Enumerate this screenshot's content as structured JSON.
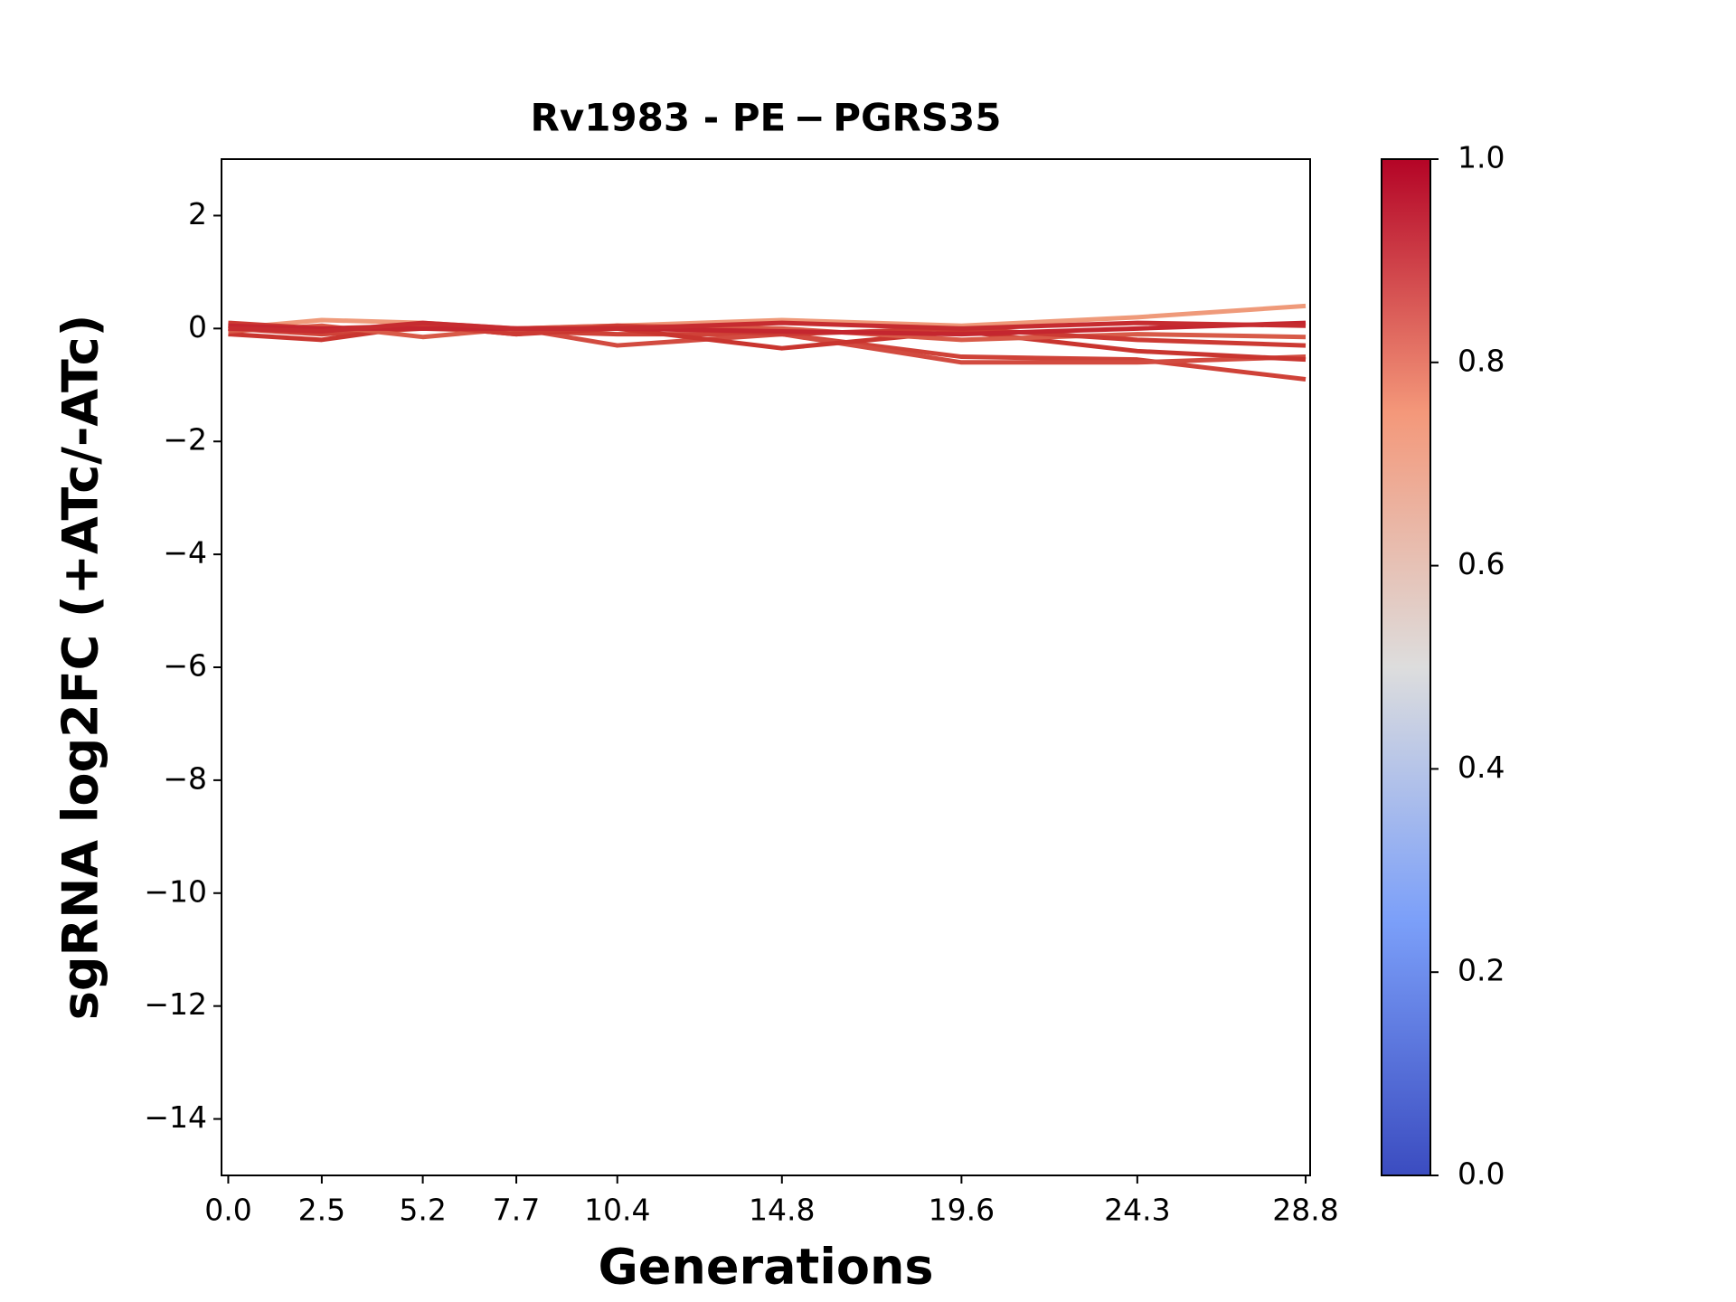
{
  "chart_data": {
    "type": "line",
    "title": "Rv1983 - PE − PGRS35",
    "x_label": "Generations",
    "y_label": "sgRNA log2FC (+ATc/-ATc)",
    "x": [
      0.0,
      2.5,
      5.2,
      7.7,
      10.4,
      14.8,
      19.6,
      24.3,
      28.8
    ],
    "xticks": [
      {
        "value": 0,
        "label": "0.0"
      },
      2.5,
      5.2,
      7.7,
      10.4,
      14.8,
      19.6,
      24.3,
      28.8
    ],
    "xlim": [
      -0.18,
      28.92
    ],
    "ylim": [
      -15,
      3
    ],
    "yticks": [
      {
        "value": -14,
        "label": "−14"
      },
      {
        "value": -12,
        "label": "−12"
      },
      {
        "value": -10,
        "label": "−10"
      },
      {
        "value": -8,
        "label": "−8"
      },
      {
        "value": -6,
        "label": "−6"
      },
      {
        "value": -4,
        "label": "−4"
      },
      {
        "value": -2,
        "label": "−2"
      },
      0,
      2
    ],
    "series": [
      {
        "color": "#ef9a7a",
        "values": [
          0.0,
          0.15,
          0.1,
          0.0,
          0.05,
          0.15,
          0.05,
          0.2,
          0.4
        ]
      },
      {
        "color": "#cf4238",
        "values": [
          0.0,
          -0.1,
          0.0,
          -0.05,
          -0.1,
          -0.1,
          -0.5,
          -0.55,
          -0.9
        ]
      },
      {
        "color": "#d24b40",
        "values": [
          0.05,
          -0.05,
          0.05,
          0.0,
          -0.3,
          -0.1,
          -0.6,
          -0.6,
          -0.5
        ]
      },
      {
        "color": "#c9352f",
        "values": [
          -0.1,
          -0.2,
          0.05,
          -0.1,
          0.0,
          -0.35,
          -0.05,
          -0.4,
          -0.55
        ]
      },
      {
        "color": "#d85a48",
        "values": [
          -0.05,
          0.05,
          -0.15,
          0.0,
          0.05,
          0.0,
          -0.2,
          -0.1,
          -0.15
        ]
      },
      {
        "color": "#cc3a33",
        "values": [
          0.1,
          0.0,
          0.05,
          -0.1,
          0.05,
          -0.1,
          0.0,
          -0.2,
          -0.3
        ]
      },
      {
        "color": "#c4262f",
        "values": [
          0.05,
          0.0,
          0.0,
          0.0,
          0.0,
          -0.05,
          -0.1,
          0.0,
          0.1
        ]
      },
      {
        "color": "#c62c30",
        "values": [
          0.0,
          -0.05,
          0.1,
          0.0,
          0.0,
          0.1,
          0.0,
          0.1,
          0.05
        ]
      }
    ],
    "colorbar": {
      "lim": [
        0,
        1
      ],
      "ticks": [
        {
          "value": 0,
          "label": "0.0"
        },
        0.2,
        0.4,
        0.6,
        0.8,
        {
          "value": 1,
          "label": "1.0"
        }
      ]
    }
  }
}
